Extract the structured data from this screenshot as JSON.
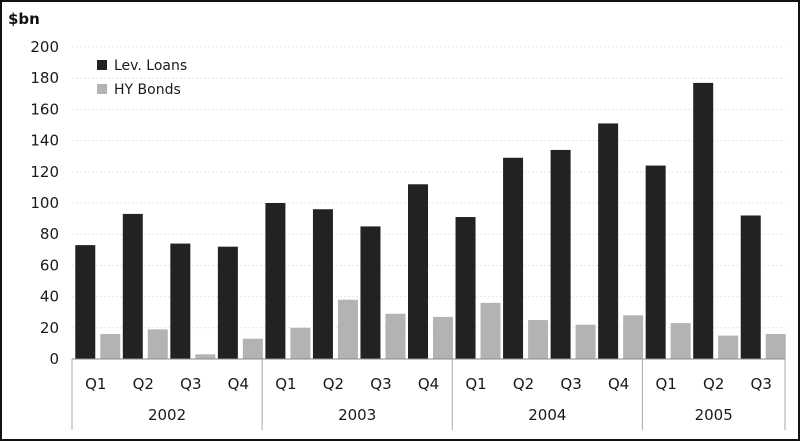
{
  "chart_data": {
    "type": "bar",
    "y_unit_label": "$bn",
    "ylim": [
      0,
      200
    ],
    "yticks": [
      0,
      20,
      40,
      60,
      80,
      100,
      120,
      140,
      160,
      180,
      200
    ],
    "grid": true,
    "legend_position": "top-left",
    "categories": [
      "Q1",
      "Q2",
      "Q3",
      "Q4",
      "Q1",
      "Q2",
      "Q3",
      "Q4",
      "Q1",
      "Q2",
      "Q3",
      "Q4",
      "Q1",
      "Q2",
      "Q3"
    ],
    "groups": [
      {
        "label": "2002",
        "quarters": [
          "Q1",
          "Q2",
          "Q3",
          "Q4"
        ]
      },
      {
        "label": "2003",
        "quarters": [
          "Q1",
          "Q2",
          "Q3",
          "Q4"
        ]
      },
      {
        "label": "2004",
        "quarters": [
          "Q1",
          "Q2",
          "Q3",
          "Q4"
        ]
      },
      {
        "label": "2005",
        "quarters": [
          "Q1",
          "Q2",
          "Q3"
        ]
      }
    ],
    "series": [
      {
        "name": "Lev. Loans",
        "color": "#222222",
        "values": [
          73,
          93,
          74,
          72,
          100,
          96,
          85,
          112,
          91,
          129,
          134,
          151,
          124,
          177,
          92
        ]
      },
      {
        "name": "HY Bonds",
        "color": "#b3b3b3",
        "values": [
          16,
          19,
          3,
          13,
          20,
          38,
          29,
          27,
          36,
          25,
          22,
          28,
          23,
          15,
          16
        ]
      }
    ]
  }
}
